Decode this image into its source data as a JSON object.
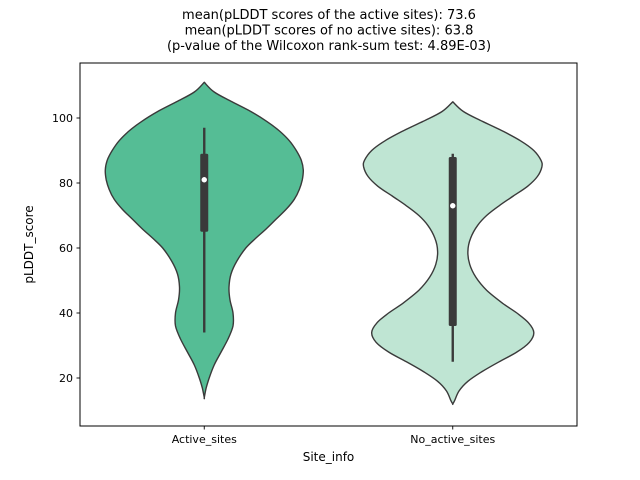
{
  "chart_data": {
    "type": "violin",
    "title_lines": [
      "mean(pLDDT scores of the active sites): 73.6",
      "mean(pLDDT scores of no active sites): 63.8",
      "(p-value of the Wilcoxon rank-sum test: 4.89E-03)"
    ],
    "xlabel": "Site_info",
    "ylabel": "pLDDT_score",
    "categories": [
      "Active_sites",
      "No_active_sites"
    ],
    "y_ticks": [
      20,
      40,
      60,
      80,
      100
    ],
    "ylim": [
      5,
      117
    ],
    "grid": false,
    "legend_position": "none",
    "stats": {
      "mean_active_sites": 73.6,
      "mean_no_active_sites": 63.8,
      "wilcoxon_rank_sum_p_value": "4.89E-03"
    },
    "series": [
      {
        "name": "Active_sites",
        "fill_color": "#55bd95",
        "edge_color": "#3a3a3a",
        "relative_width": 1.0,
        "box_stats": {
          "whisker_low": 34,
          "q1": 65,
          "median": 81,
          "q3": 89,
          "whisker_high": 97
        },
        "kde_profile": [
          [
            111,
            0
          ],
          [
            108,
            0.1
          ],
          [
            105,
            0.28
          ],
          [
            102,
            0.47
          ],
          [
            99,
            0.63
          ],
          [
            96,
            0.76
          ],
          [
            93,
            0.86
          ],
          [
            90,
            0.93
          ],
          [
            87,
            0.98
          ],
          [
            84,
            1.0
          ],
          [
            81,
            0.99
          ],
          [
            78,
            0.96
          ],
          [
            75,
            0.91
          ],
          [
            72,
            0.83
          ],
          [
            69,
            0.73
          ],
          [
            66,
            0.63
          ],
          [
            63,
            0.52
          ],
          [
            60,
            0.42
          ],
          [
            56,
            0.33
          ],
          [
            52,
            0.27
          ],
          [
            48,
            0.25
          ],
          [
            44,
            0.26
          ],
          [
            40,
            0.29
          ],
          [
            36,
            0.29
          ],
          [
            32,
            0.24
          ],
          [
            28,
            0.17
          ],
          [
            24,
            0.1
          ],
          [
            20,
            0.05
          ],
          [
            17,
            0.02
          ],
          [
            14,
            0
          ]
        ]
      },
      {
        "name": "No_active_sites",
        "fill_color": "#bfe5d3",
        "edge_color": "#3a3a3a",
        "relative_width": 0.9,
        "box_stats": {
          "whisker_low": 25,
          "q1": 36,
          "median": 73,
          "q3": 88,
          "whisker_high": 89
        },
        "kde_profile": [
          [
            105,
            0
          ],
          [
            102,
            0.12
          ],
          [
            99,
            0.33
          ],
          [
            96,
            0.56
          ],
          [
            93,
            0.76
          ],
          [
            90,
            0.91
          ],
          [
            87,
            0.99
          ],
          [
            85,
            1.0
          ],
          [
            82,
            0.95
          ],
          [
            79,
            0.84
          ],
          [
            76,
            0.68
          ],
          [
            73,
            0.52
          ],
          [
            70,
            0.38
          ],
          [
            67,
            0.28
          ],
          [
            63,
            0.2
          ],
          [
            59,
            0.17
          ],
          [
            55,
            0.19
          ],
          [
            51,
            0.26
          ],
          [
            47,
            0.38
          ],
          [
            43,
            0.56
          ],
          [
            40,
            0.72
          ],
          [
            37,
            0.85
          ],
          [
            34,
            0.91
          ],
          [
            31,
            0.86
          ],
          [
            28,
            0.72
          ],
          [
            25,
            0.52
          ],
          [
            22,
            0.33
          ],
          [
            19,
            0.17
          ],
          [
            16,
            0.07
          ],
          [
            13,
            0.02
          ],
          [
            12,
            0
          ]
        ]
      }
    ]
  }
}
